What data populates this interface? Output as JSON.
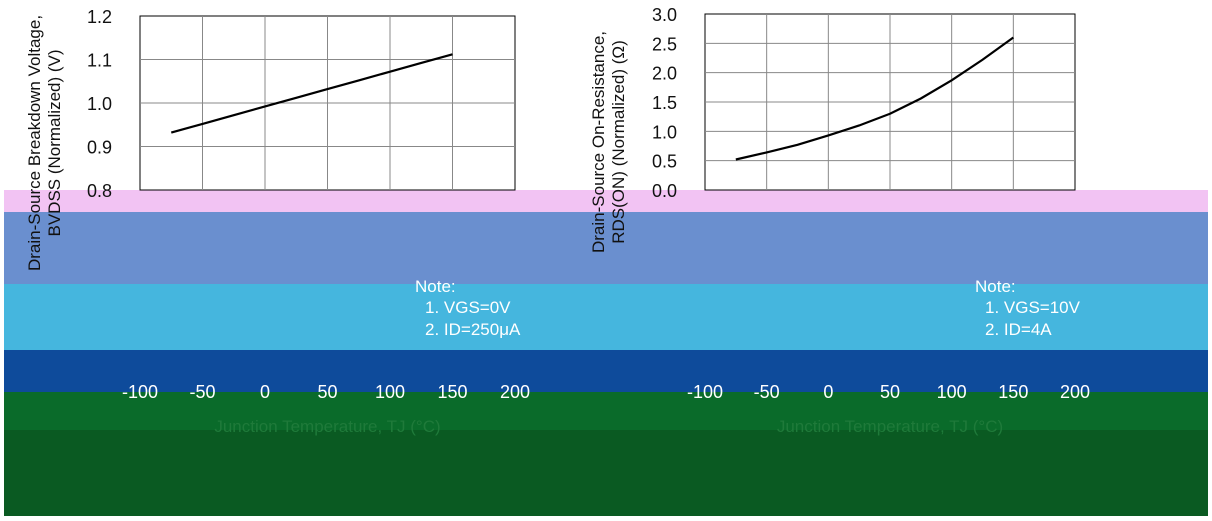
{
  "bands": {
    "colors": [
      "#fdf5f0",
      "#f2c3f3",
      "#6a8fcf",
      "#45b6de",
      "#0e4b9b",
      "#0a6b2a",
      "#0a5a22"
    ]
  },
  "chart_data": [
    {
      "type": "line",
      "ylabel_lines": [
        "Drain-Source Breakdown Voltage,",
        "BVDSS (Normalized) (V)"
      ],
      "xlabel": "Junction Temperature, TJ (°C)",
      "xlim": [
        -100,
        200
      ],
      "ylim": [
        0.8,
        1.2
      ],
      "x_ticks": [
        "-100",
        "-50",
        "0",
        "50",
        "100",
        "150",
        "200"
      ],
      "y_ticks": [
        "0.8",
        "0.9",
        "1.0",
        "1.1",
        "1.2"
      ],
      "note_title": "Note:",
      "notes": [
        "1. VGS=0V",
        "2. ID=250μA"
      ],
      "grid": true,
      "series": [
        {
          "x": [
            -75,
            -50,
            -25,
            0,
            25,
            50,
            75,
            100,
            125,
            150
          ],
          "y": [
            0.932,
            0.952,
            0.972,
            0.992,
            1.012,
            1.032,
            1.052,
            1.072,
            1.092,
            1.112
          ]
        }
      ]
    },
    {
      "type": "line",
      "ylabel_lines": [
        "Drain-Source On-Resistance,",
        "RDS(ON) (Normalized) (Ω)"
      ],
      "xlabel": "Junction Temperature, TJ (°C)",
      "xlim": [
        -100,
        200
      ],
      "ylim": [
        0.0,
        3.0
      ],
      "x_ticks": [
        "-100",
        "-50",
        "0",
        "50",
        "100",
        "150",
        "200"
      ],
      "y_ticks": [
        "0.0",
        "0.5",
        "1.0",
        "1.5",
        "2.0",
        "2.5",
        "3.0"
      ],
      "note_title": "Note:",
      "notes": [
        "1. VGS=10V",
        "2. ID=4A"
      ],
      "grid": true,
      "series": [
        {
          "x": [
            -75,
            -50,
            -25,
            0,
            25,
            50,
            75,
            100,
            125,
            150
          ],
          "y": [
            0.52,
            0.64,
            0.77,
            0.93,
            1.1,
            1.3,
            1.56,
            1.87,
            2.22,
            2.6
          ]
        }
      ]
    }
  ]
}
